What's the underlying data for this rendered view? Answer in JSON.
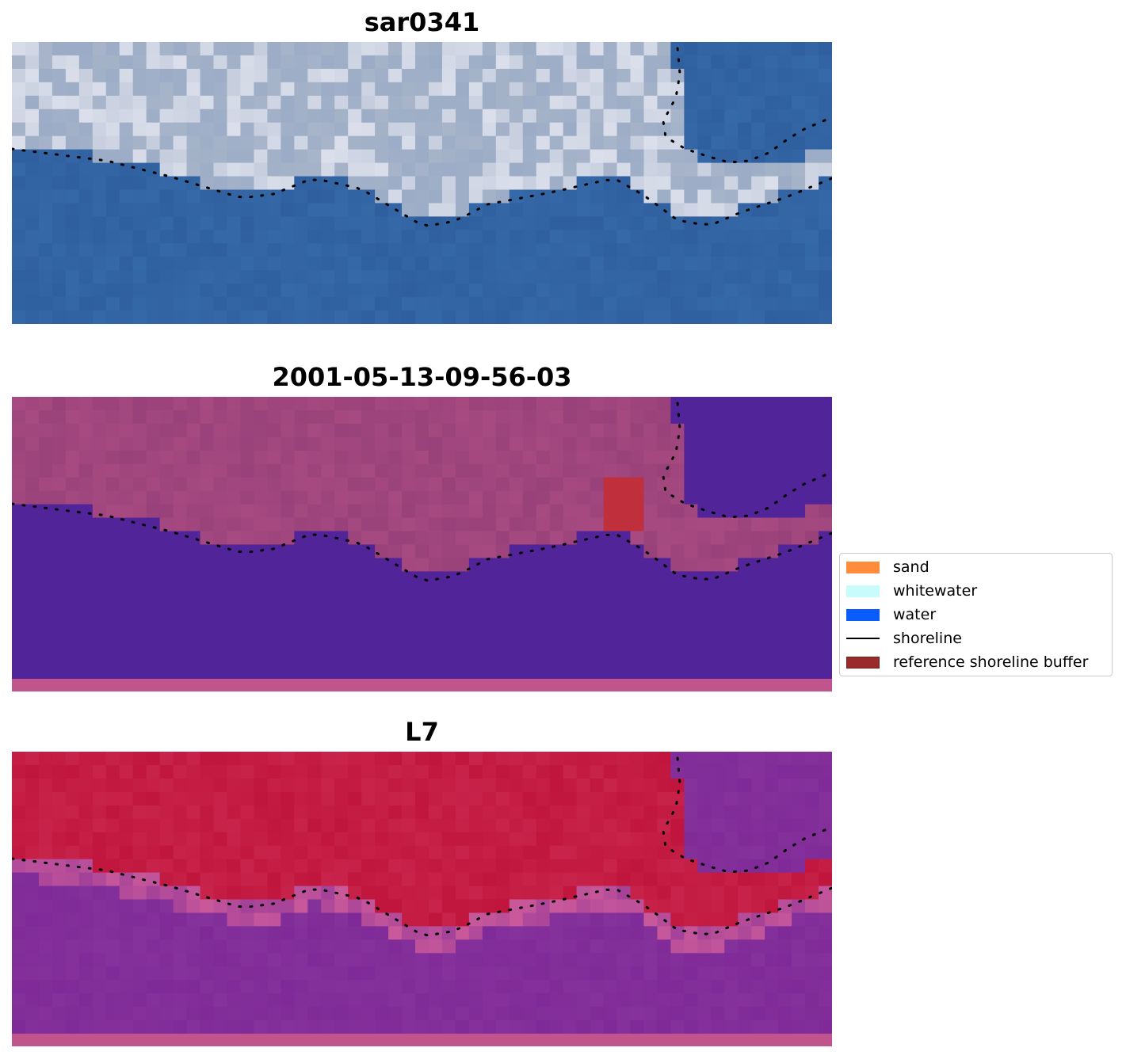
{
  "panels": [
    {
      "title": "sar0341",
      "scheme": "rgb"
    },
    {
      "title": "2001-05-13-09-56-03",
      "scheme": "class"
    },
    {
      "title": "L7",
      "scheme": "index"
    }
  ],
  "legend": {
    "items": [
      {
        "label": "sand",
        "color": "#ff8c3a",
        "kind": "patch"
      },
      {
        "label": "whitewater",
        "color": "#c8fcfc",
        "kind": "patch"
      },
      {
        "label": "water",
        "color": "#0a5cff",
        "kind": "patch"
      },
      {
        "label": "shoreline",
        "color": "#000000",
        "kind": "line"
      },
      {
        "label": "reference shoreline buffer",
        "color": "#9a2b2b",
        "kind": "patch"
      }
    ]
  },
  "colors": {
    "rgb_water": "#2f5f9e",
    "rgb_land": "#a7b4c9",
    "rgb_bright": "#e8eaf4",
    "class_water": "#52249a",
    "class_land": "#a84a82",
    "class_buffer": "#c0303c",
    "index_water": "#7f2a98",
    "index_land": "#c0153c",
    "index_edge": "#c9599a",
    "bottom_strip": "#c0558e"
  }
}
